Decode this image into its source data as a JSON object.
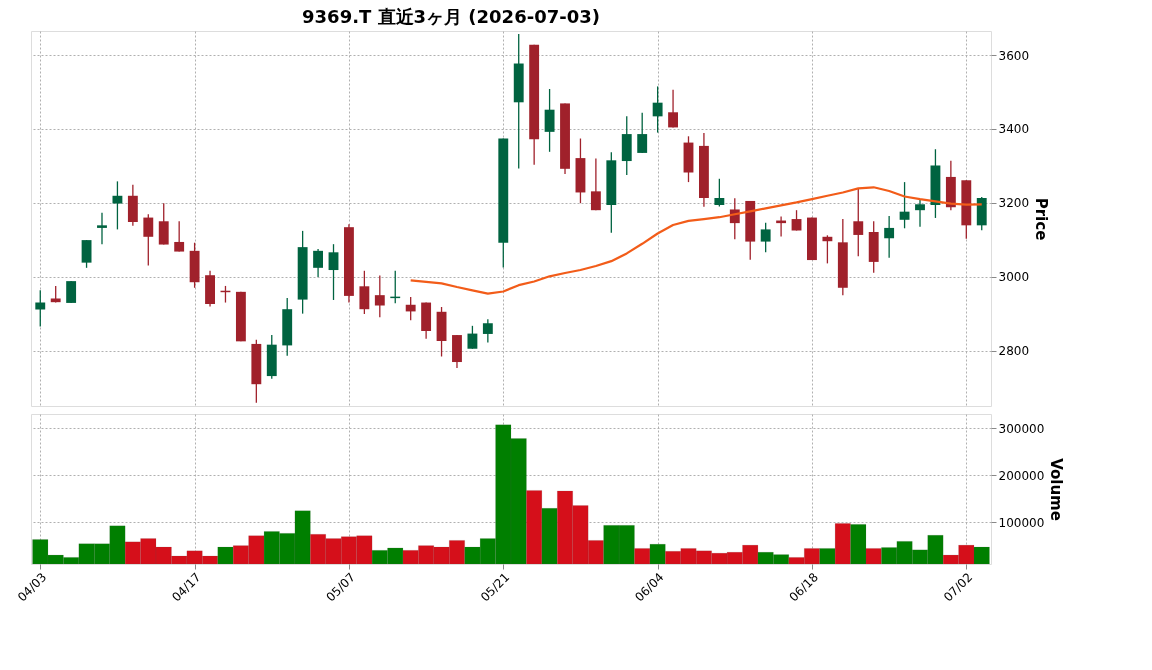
{
  "chart_data": [
    {
      "type": "candlestick",
      "title": "9369.T  直近3ヶ月  (2026-07-03)",
      "ylabel": "Price",
      "ohlc": [
        [
          2911,
          2963,
          2865,
          2930
        ],
        [
          2941,
          2975,
          2930,
          2931
        ],
        [
          2929,
          2988,
          2929,
          2988
        ],
        [
          3038,
          3099,
          3024,
          3099
        ],
        [
          3132,
          3173,
          3088,
          3139
        ],
        [
          3198,
          3258,
          3128,
          3219
        ],
        [
          3219,
          3249,
          3138,
          3148
        ],
        [
          3160,
          3169,
          3030,
          3108
        ],
        [
          3150,
          3199,
          3087,
          3087
        ],
        [
          3094,
          3150,
          3068,
          3068
        ],
        [
          3070,
          3092,
          2970,
          2985
        ],
        [
          3004,
          3016,
          2919,
          2926
        ],
        [
          2962,
          2975,
          2930,
          2958
        ],
        [
          2959,
          2959,
          2825,
          2825
        ],
        [
          2818,
          2829,
          2659,
          2709
        ],
        [
          2731,
          2842,
          2724,
          2816
        ],
        [
          2814,
          2942,
          2786,
          2912
        ],
        [
          2938,
          3124,
          2900,
          3080
        ],
        [
          3024,
          3075,
          2999,
          3070
        ],
        [
          3018,
          3088,
          2937,
          3066
        ],
        [
          3134,
          3142,
          2930,
          2948
        ],
        [
          2974,
          3016,
          2899,
          2912
        ],
        [
          2950,
          3003,
          2890,
          2922
        ],
        [
          2942,
          3016,
          2928,
          2946
        ],
        [
          2924,
          2945,
          2882,
          2906
        ],
        [
          2930,
          2930,
          2832,
          2853
        ],
        [
          2905,
          2918,
          2784,
          2826
        ],
        [
          2842,
          2842,
          2753,
          2769
        ],
        [
          2805,
          2867,
          2805,
          2846
        ],
        [
          2845,
          2885,
          2822,
          2874
        ],
        [
          3092,
          3374,
          3025,
          3374
        ],
        [
          3472,
          3657,
          3293,
          3577
        ],
        [
          3628,
          3628,
          3303,
          3372
        ],
        [
          3392,
          3508,
          3338,
          3452
        ],
        [
          3469,
          3469,
          3278,
          3292
        ],
        [
          3321,
          3374,
          3199,
          3228
        ],
        [
          3231,
          3320,
          3180,
          3180
        ],
        [
          3194,
          3337,
          3119,
          3315
        ],
        [
          3313,
          3434,
          3275,
          3386
        ],
        [
          3335,
          3444,
          3335,
          3386
        ],
        [
          3434,
          3515,
          3390,
          3471
        ],
        [
          3445,
          3506,
          3404,
          3404
        ],
        [
          3363,
          3380,
          3256,
          3282
        ],
        [
          3354,
          3389,
          3189,
          3213
        ],
        [
          3194,
          3265,
          3190,
          3213
        ],
        [
          3182,
          3212,
          3101,
          3145
        ],
        [
          3205,
          3205,
          3046,
          3095
        ],
        [
          3095,
          3146,
          3066,
          3128
        ],
        [
          3152,
          3163,
          3109,
          3145
        ],
        [
          3156,
          3180,
          3125,
          3125
        ],
        [
          3160,
          3160,
          3045,
          3045
        ],
        [
          3108,
          3112,
          3036,
          3096
        ],
        [
          3093,
          3156,
          2950,
          2970
        ],
        [
          3150,
          3238,
          3055,
          3113
        ],
        [
          3121,
          3150,
          3011,
          3040
        ],
        [
          3104,
          3164,
          3051,
          3132
        ],
        [
          3154,
          3256,
          3131,
          3176
        ],
        [
          3180,
          3208,
          3135,
          3196
        ],
        [
          3194,
          3345,
          3159,
          3301
        ],
        [
          3270,
          3314,
          3180,
          3188
        ],
        [
          3261,
          3261,
          3103,
          3139
        ],
        [
          3139,
          3216,
          3126,
          3213
        ]
      ],
      "colors": [
        "#006340",
        "#a0212b",
        "#006340",
        "#006340",
        "#006340",
        "#006340",
        "#a0212b",
        "#a0212b",
        "#a0212b",
        "#a0212b",
        "#a0212b",
        "#a0212b",
        "#a0212b",
        "#a0212b",
        "#a0212b",
        "#006340",
        "#006340",
        "#006340",
        "#006340",
        "#006340",
        "#a0212b",
        "#a0212b",
        "#a0212b",
        "#006340",
        "#a0212b",
        "#a0212b",
        "#a0212b",
        "#a0212b",
        "#006340",
        "#006340",
        "#006340",
        "#006340",
        "#a0212b",
        "#006340",
        "#a0212b",
        "#a0212b",
        "#a0212b",
        "#006340",
        "#006340",
        "#006340",
        "#006340",
        "#a0212b",
        "#a0212b",
        "#a0212b",
        "#006340",
        "#a0212b",
        "#a0212b",
        "#006340",
        "#a0212b",
        "#a0212b",
        "#a0212b",
        "#a0212b",
        "#a0212b",
        "#a0212b",
        "#a0212b",
        "#006340",
        "#006340",
        "#006340",
        "#006340",
        "#a0212b",
        "#a0212b",
        "#006340"
      ],
      "series": [
        {
          "type": "line",
          "color": "#f25c19",
          "values": [
            null,
            null,
            null,
            null,
            null,
            null,
            null,
            null,
            null,
            null,
            null,
            null,
            null,
            null,
            null,
            null,
            null,
            null,
            null,
            null,
            null,
            null,
            null,
            null,
            2990,
            2986,
            2982,
            2972,
            2963,
            2954,
            2960,
            2977,
            2987,
            3001,
            3010,
            3018,
            3029,
            3042,
            3063,
            3089,
            3117,
            3140,
            3151,
            3156,
            3161,
            3169,
            3177,
            3185,
            3193,
            3201,
            3210,
            3219,
            3228,
            3239,
            3242,
            3232,
            3217,
            3210,
            3204,
            3198,
            3195,
            3196
          ]
        }
      ],
      "ylim": [
        2650,
        3665
      ],
      "yticks": [
        2800,
        3000,
        3200,
        3400,
        3600
      ],
      "grid": true,
      "tick_labels": "y"
    },
    {
      "type": "bar",
      "ylabel": "Volume",
      "categories": [
        "04/03",
        null,
        null,
        null,
        null,
        null,
        null,
        null,
        null,
        null,
        "04/17",
        null,
        null,
        null,
        null,
        null,
        null,
        null,
        null,
        null,
        "05/07",
        null,
        null,
        null,
        null,
        null,
        null,
        null,
        null,
        null,
        "05/21",
        null,
        null,
        null,
        null,
        null,
        null,
        null,
        null,
        null,
        "06/04",
        null,
        null,
        null,
        null,
        null,
        null,
        null,
        null,
        null,
        "06/18",
        null,
        null,
        null,
        null,
        null,
        null,
        null,
        null,
        null,
        "07/02",
        null
      ],
      "values": [
        64000,
        31000,
        26000,
        55000,
        55000,
        93000,
        59000,
        66000,
        48000,
        29000,
        40000,
        29000,
        48000,
        51000,
        72000,
        81000,
        77000,
        125000,
        75000,
        66000,
        70000,
        72000,
        41000,
        46000,
        41000,
        51000,
        48000,
        62000,
        48000,
        66000,
        307000,
        278000,
        168000,
        130000,
        167000,
        136000,
        62000,
        94000,
        94000,
        45000,
        54000,
        39000,
        45000,
        40000,
        35000,
        37000,
        52000,
        37000,
        32000,
        26000,
        45000,
        45000,
        98000,
        96000,
        45000,
        47000,
        60000,
        42000,
        73000,
        31000,
        52000,
        48000
      ],
      "colors": [
        "#007f00",
        "#007f00",
        "#007f00",
        "#007f00",
        "#007f00",
        "#007f00",
        "#d50f1a",
        "#d50f1a",
        "#d50f1a",
        "#d50f1a",
        "#d50f1a",
        "#d50f1a",
        "#007f00",
        "#d50f1a",
        "#d50f1a",
        "#007f00",
        "#007f00",
        "#007f00",
        "#d50f1a",
        "#d50f1a",
        "#d50f1a",
        "#d50f1a",
        "#007f00",
        "#007f00",
        "#d50f1a",
        "#d50f1a",
        "#d50f1a",
        "#d50f1a",
        "#007f00",
        "#007f00",
        "#007f00",
        "#007f00",
        "#d50f1a",
        "#007f00",
        "#d50f1a",
        "#d50f1a",
        "#d50f1a",
        "#007f00",
        "#007f00",
        "#d50f1a",
        "#007f00",
        "#d50f1a",
        "#d50f1a",
        "#d50f1a",
        "#d50f1a",
        "#d50f1a",
        "#d50f1a",
        "#007f00",
        "#007f00",
        "#d50f1a",
        "#d50f1a",
        "#007f00",
        "#d50f1a",
        "#007f00",
        "#d50f1a",
        "#007f00",
        "#007f00",
        "#007f00",
        "#007f00",
        "#d50f1a",
        "#d50f1a",
        "#007f00"
      ],
      "ylim": [
        12000,
        330000
      ],
      "yticks": [
        100000,
        200000,
        300000
      ],
      "grid": true
    }
  ]
}
